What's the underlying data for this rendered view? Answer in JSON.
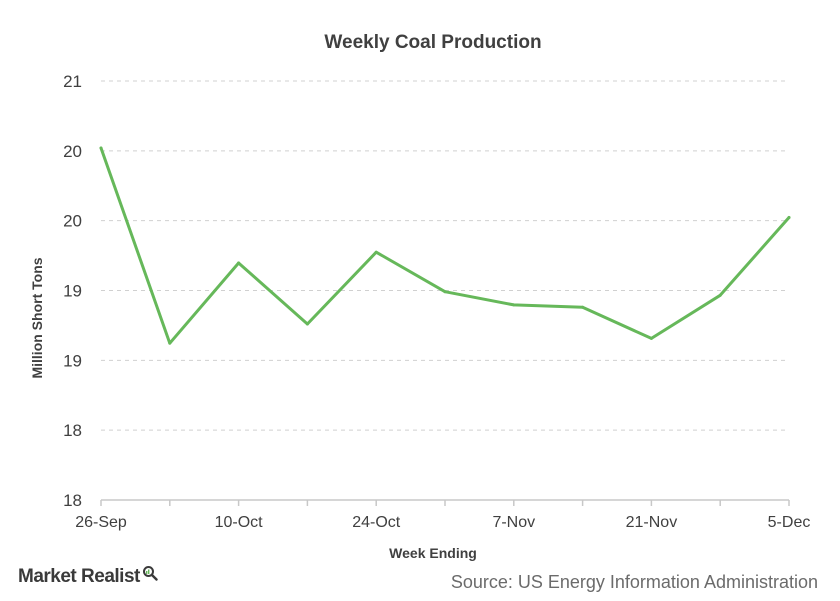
{
  "colors": {
    "series": "#66b85a",
    "text": "#404040",
    "source": "#6b6b6b"
  },
  "footer": {
    "brand": "Market Realist",
    "brand_icon": "magnifier-icon",
    "source": "Source: US Energy Information Administration"
  },
  "chart_data": {
    "type": "line",
    "title": "Weekly Coal Production",
    "xlabel": "Week Ending",
    "ylabel": "Million Short Tons",
    "categories": [
      "26-Sep",
      "3-Oct",
      "10-Oct",
      "17-Oct",
      "24-Oct",
      "31-Oct",
      "7-Nov",
      "14-Nov",
      "21-Nov",
      "28-Nov",
      "5-Dec"
    ],
    "x_tick_labels": [
      "26-Sep",
      "10-Oct",
      "24-Oct",
      "7-Nov",
      "21-Nov",
      "5-Dec"
    ],
    "y_tick_labels": [
      "18",
      "18",
      "19",
      "19",
      "20",
      "20",
      "21"
    ],
    "ylim": [
      17.5,
      21
    ],
    "grid": true,
    "series": [
      {
        "values": [
          20.44,
          18.81,
          19.48,
          18.97,
          19.57,
          19.24,
          19.13,
          19.11,
          18.85,
          19.21,
          19.86
        ]
      }
    ]
  }
}
